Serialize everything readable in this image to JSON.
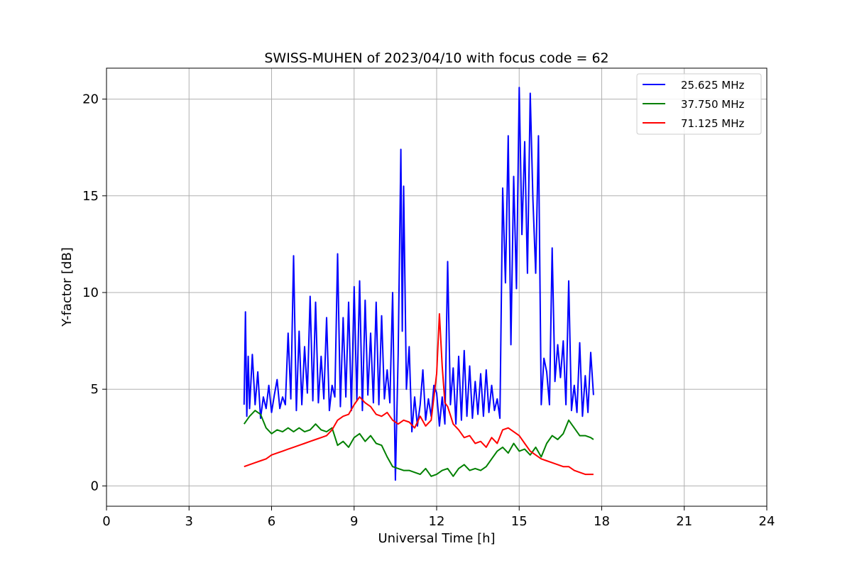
{
  "chart_data": {
    "type": "line",
    "title": "SWISS-MUHEN of 2023/04/10 with focus code = 62",
    "xlabel": "Universal Time [h]",
    "ylabel": "Y-factor [dB]",
    "xlim": [
      0,
      24
    ],
    "ylim": [
      -1.05,
      21.6
    ],
    "xticks": [
      0,
      3,
      6,
      9,
      12,
      15,
      18,
      21,
      24
    ],
    "yticks": [
      0,
      5,
      10,
      15,
      20
    ],
    "grid": true,
    "legend_position": "top-right",
    "series": [
      {
        "name": "25.625 MHz",
        "color": "#0000ff",
        "x": [
          5.0,
          5.05,
          5.1,
          5.15,
          5.2,
          5.3,
          5.4,
          5.5,
          5.6,
          5.7,
          5.8,
          5.9,
          6.0,
          6.1,
          6.2,
          6.3,
          6.4,
          6.5,
          6.6,
          6.7,
          6.8,
          6.9,
          7.0,
          7.1,
          7.2,
          7.3,
          7.4,
          7.5,
          7.6,
          7.7,
          7.8,
          7.9,
          8.0,
          8.1,
          8.2,
          8.3,
          8.4,
          8.5,
          8.6,
          8.7,
          8.8,
          8.9,
          9.0,
          9.1,
          9.2,
          9.3,
          9.4,
          9.5,
          9.6,
          9.7,
          9.8,
          9.9,
          10.0,
          10.1,
          10.2,
          10.3,
          10.4,
          10.5,
          10.6,
          10.7,
          10.75,
          10.8,
          10.9,
          11.0,
          11.1,
          11.2,
          11.3,
          11.4,
          11.5,
          11.6,
          11.7,
          11.8,
          11.9,
          12.0,
          12.1,
          12.2,
          12.3,
          12.4,
          12.5,
          12.6,
          12.7,
          12.8,
          12.9,
          13.0,
          13.1,
          13.2,
          13.3,
          13.4,
          13.5,
          13.6,
          13.7,
          13.8,
          13.9,
          14.0,
          14.1,
          14.2,
          14.3,
          14.4,
          14.5,
          14.6,
          14.7,
          14.8,
          14.9,
          15.0,
          15.1,
          15.2,
          15.3,
          15.4,
          15.5,
          15.6,
          15.7,
          15.8,
          15.9,
          16.0,
          16.1,
          16.2,
          16.3,
          16.4,
          16.5,
          16.6,
          16.7,
          16.8,
          16.9,
          17.0,
          17.1,
          17.2,
          17.3,
          17.4,
          17.5,
          17.6,
          17.7
        ],
        "y": [
          4.2,
          9.0,
          3.6,
          6.7,
          4.0,
          6.8,
          4.2,
          5.9,
          3.5,
          4.6,
          4.0,
          5.2,
          3.8,
          4.7,
          5.5,
          4.0,
          4.6,
          4.2,
          7.9,
          4.5,
          11.9,
          3.9,
          8.0,
          4.2,
          7.2,
          4.8,
          9.8,
          4.4,
          9.5,
          4.3,
          6.7,
          4.5,
          8.7,
          3.9,
          5.2,
          4.6,
          12.0,
          4.1,
          8.7,
          4.6,
          9.5,
          3.9,
          10.3,
          4.4,
          10.6,
          3.9,
          9.6,
          4.7,
          7.9,
          4.3,
          9.5,
          4.2,
          8.8,
          4.5,
          6.0,
          4.3,
          10.0,
          0.3,
          6.8,
          17.4,
          8.0,
          15.5,
          5.0,
          7.2,
          2.8,
          4.6,
          3.1,
          4.2,
          6.0,
          3.4,
          4.5,
          3.6,
          5.2,
          4.8,
          3.1,
          4.6,
          3.2,
          11.6,
          4.2,
          6.1,
          3.2,
          6.7,
          3.4,
          7.0,
          3.6,
          6.2,
          3.5,
          5.4,
          3.7,
          5.8,
          3.6,
          6.0,
          3.8,
          5.2,
          3.9,
          4.5,
          3.5,
          15.4,
          10.5,
          18.1,
          7.3,
          16.0,
          10.2,
          20.6,
          13.0,
          17.8,
          11.0,
          20.3,
          14.8,
          11.0,
          18.1,
          4.2,
          6.6,
          5.9,
          4.2,
          12.3,
          5.4,
          7.3,
          5.6,
          7.5,
          4.2,
          10.6,
          3.9,
          5.2,
          3.8,
          7.4,
          3.6,
          5.7,
          3.8,
          6.9,
          4.7
        ]
      },
      {
        "name": "37.750 MHz",
        "color": "#008000",
        "x": [
          5.0,
          5.2,
          5.4,
          5.6,
          5.8,
          6.0,
          6.2,
          6.4,
          6.6,
          6.8,
          7.0,
          7.2,
          7.4,
          7.6,
          7.8,
          8.0,
          8.2,
          8.4,
          8.6,
          8.8,
          9.0,
          9.2,
          9.4,
          9.6,
          9.8,
          10.0,
          10.2,
          10.4,
          10.6,
          10.8,
          11.0,
          11.2,
          11.4,
          11.6,
          11.8,
          12.0,
          12.2,
          12.4,
          12.6,
          12.8,
          13.0,
          13.2,
          13.4,
          13.6,
          13.8,
          14.0,
          14.2,
          14.4,
          14.6,
          14.8,
          15.0,
          15.2,
          15.4,
          15.6,
          15.8,
          16.0,
          16.2,
          16.4,
          16.6,
          16.8,
          17.0,
          17.2,
          17.4,
          17.6,
          17.7
        ],
        "y": [
          3.2,
          3.6,
          3.9,
          3.7,
          3.0,
          2.7,
          2.9,
          2.8,
          3.0,
          2.8,
          3.0,
          2.8,
          2.9,
          3.2,
          2.9,
          2.8,
          3.0,
          2.1,
          2.3,
          2.0,
          2.5,
          2.7,
          2.3,
          2.6,
          2.2,
          2.1,
          1.5,
          1.0,
          0.9,
          0.8,
          0.8,
          0.7,
          0.6,
          0.9,
          0.5,
          0.6,
          0.8,
          0.9,
          0.5,
          0.9,
          1.1,
          0.8,
          0.9,
          0.8,
          1.0,
          1.4,
          1.8,
          2.0,
          1.7,
          2.2,
          1.8,
          1.9,
          1.6,
          2.0,
          1.5,
          2.2,
          2.6,
          2.4,
          2.7,
          3.4,
          3.0,
          2.6,
          2.6,
          2.5,
          2.4
        ]
      },
      {
        "name": "71.125 MHz",
        "color": "#ff0000",
        "x": [
          5.0,
          5.2,
          5.4,
          5.6,
          5.8,
          6.0,
          6.2,
          6.4,
          6.6,
          6.8,
          7.0,
          7.2,
          7.4,
          7.6,
          7.8,
          8.0,
          8.2,
          8.4,
          8.6,
          8.8,
          9.0,
          9.2,
          9.4,
          9.6,
          9.8,
          10.0,
          10.2,
          10.4,
          10.6,
          10.8,
          11.0,
          11.2,
          11.4,
          11.6,
          11.8,
          12.0,
          12.1,
          12.2,
          12.3,
          12.4,
          12.6,
          12.8,
          13.0,
          13.2,
          13.4,
          13.6,
          13.8,
          14.0,
          14.2,
          14.4,
          14.6,
          14.8,
          15.0,
          15.2,
          15.4,
          15.6,
          15.8,
          16.0,
          16.2,
          16.4,
          16.6,
          16.8,
          17.0,
          17.2,
          17.4,
          17.6,
          17.7
        ],
        "y": [
          1.0,
          1.1,
          1.2,
          1.3,
          1.4,
          1.6,
          1.7,
          1.8,
          1.9,
          2.0,
          2.1,
          2.2,
          2.3,
          2.4,
          2.5,
          2.6,
          2.9,
          3.4,
          3.6,
          3.7,
          4.2,
          4.6,
          4.3,
          4.1,
          3.7,
          3.6,
          3.8,
          3.4,
          3.2,
          3.4,
          3.3,
          3.0,
          3.6,
          3.1,
          3.4,
          5.8,
          8.9,
          6.2,
          4.3,
          4.1,
          3.2,
          2.9,
          2.5,
          2.6,
          2.2,
          2.3,
          2.0,
          2.5,
          2.2,
          2.9,
          3.0,
          2.8,
          2.6,
          2.2,
          1.8,
          1.6,
          1.4,
          1.3,
          1.2,
          1.1,
          1.0,
          1.0,
          0.8,
          0.7,
          0.6,
          0.6,
          0.6
        ]
      }
    ]
  }
}
